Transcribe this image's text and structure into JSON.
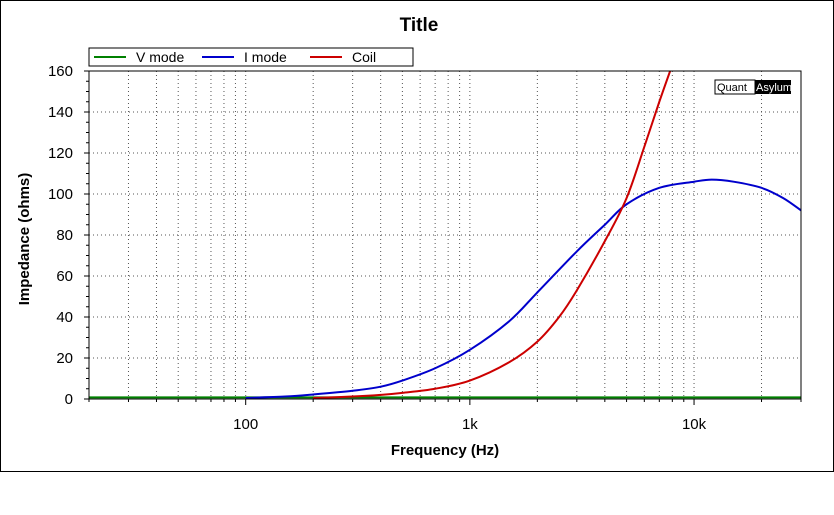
{
  "chart_data": {
    "type": "line",
    "title": "Title",
    "xlabel": "Frequency (Hz)",
    "ylabel": "Impedance (ohms)",
    "xscale": "log",
    "xlim": [
      20,
      30000
    ],
    "ylim": [
      0,
      160
    ],
    "x_ticks": [
      100,
      1000,
      10000
    ],
    "x_tick_labels": [
      "100",
      "1k",
      "10k"
    ],
    "y_ticks": [
      0,
      20,
      40,
      60,
      80,
      100,
      120,
      140,
      160
    ],
    "y_tick_labels": [
      "0",
      "20",
      "40",
      "60",
      "80",
      "100",
      "120",
      "140",
      "160"
    ],
    "grid": true,
    "legend_position": "top-left",
    "series": [
      {
        "name": "V mode",
        "color": "#008000",
        "x": [
          20,
          100,
          1000,
          10000,
          30000
        ],
        "y": [
          0.8,
          0.8,
          0.8,
          0.8,
          0.8
        ]
      },
      {
        "name": "I mode",
        "color": "#0000cc",
        "x": [
          100,
          150,
          200,
          300,
          400,
          500,
          700,
          1000,
          1500,
          2000,
          3000,
          4000,
          5000,
          7000,
          10000,
          12000,
          15000,
          20000,
          25000,
          30000
        ],
        "y": [
          0.5,
          1.2,
          2.2,
          4,
          6,
          9,
          15,
          24,
          38,
          52,
          72,
          85,
          95,
          103,
          106,
          107,
          106,
          103,
          98,
          92
        ]
      },
      {
        "name": "Coil",
        "color": "#cc0000",
        "x": [
          200,
          300,
          400,
          500,
          700,
          1000,
          1500,
          2000,
          2500,
          3000,
          4000,
          5000,
          6000,
          7000,
          8000
        ],
        "y": [
          0.5,
          1.2,
          2,
          3,
          5,
          9,
          18,
          28,
          40,
          53,
          77,
          98,
          123,
          145,
          163
        ]
      }
    ]
  },
  "watermark": {
    "left": "Quant",
    "right": "Asylum"
  }
}
